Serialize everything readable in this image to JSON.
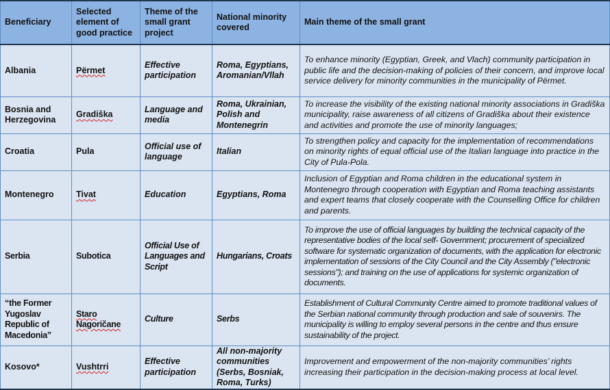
{
  "table": {
    "headers": [
      "Beneficiary",
      "Selected element of good practice",
      "Theme of the small grant project",
      "National minority covered",
      "Main theme of the small grant"
    ],
    "rows": [
      {
        "beneficiary": "Albania",
        "element": "Përmet",
        "element_flagged": true,
        "theme": "Effective participation",
        "minority": "Roma, Egyptians, Aromanian/Vllah",
        "main": "To enhance minority (Egyptian, Greek, and Vlach) community participation in public life and the decision-making of policies of their concern, and improve local service delivery for minority communities in the municipality of Përmet."
      },
      {
        "beneficiary": "Bosnia and Herzegovina",
        "element": "Gradiška",
        "element_flagged": true,
        "theme": "Language and media",
        "minority": "Roma, Ukrainian, Polish and Montenegrin",
        "main": "To increase the visibility of the existing national minority associations in Gradiška municipality, raise awareness of all citizens of Gradiška about their existence and activities and promote the use of minority languages;"
      },
      {
        "beneficiary": "Croatia",
        "element": "Pula",
        "element_flagged": false,
        "theme": "Official use of language",
        "minority": "Italian",
        "main": "To strengthen policy and capacity for the implementation of recommendations on minority rights of equal official use of the Italian language into practice in the City of Pula-Pola."
      },
      {
        "beneficiary": "Montenegro",
        "element": "Tivat",
        "element_flagged": true,
        "theme": "Education",
        "minority": "Egyptians, Roma",
        "main": "Inclusion of Egyptian and Roma children in the educational system in Montenegro through cooperation with Egyptian and Roma teaching assistants and expert teams that closely cooperate with the Counselling Office for children and parents."
      },
      {
        "beneficiary": "Serbia",
        "element": "Subotica",
        "element_flagged": false,
        "theme": "Official Use of Languages and Script",
        "minority": "Hungarians, Croats",
        "main": "To improve the use of official languages by building the technical capacity of the representative bodies of the local self- Government; procurement of specialized software for systematic organization of documents, with the application for electronic implementation of sessions of the City Council and the City Assembly (\"electronic sessions\"); and training on the use of applications for systemic organization of documents."
      },
      {
        "beneficiary": "“the Former Yugoslav Republic of Macedonia”",
        "element": "Staro Nagoričane",
        "element_flagged": true,
        "theme": "Culture",
        "minority": "Serbs",
        "main": "Establishment of Cultural Community Centre aimed to promote traditional values of the Serbian national community through production and sale of souvenirs. The municipality is willing to employ several persons in the centre and thus ensure sustainability of the project."
      },
      {
        "beneficiary": "Kosovo*",
        "element": "Vushtrri",
        "element_flagged": true,
        "theme": "Effective participation",
        "minority": "All non-majority communities (Serbs, Bosniak, Roma, Turks)",
        "main": "Improvement and empowerment of the non-majority communities’ rights increasing their participation in the decision-making process at local level."
      }
    ]
  },
  "colors": {
    "header_bg": "#8db3e2",
    "cell_bg": "#dbe5f1",
    "border": "#5f8dc4",
    "spellcheck": "#d02020"
  }
}
